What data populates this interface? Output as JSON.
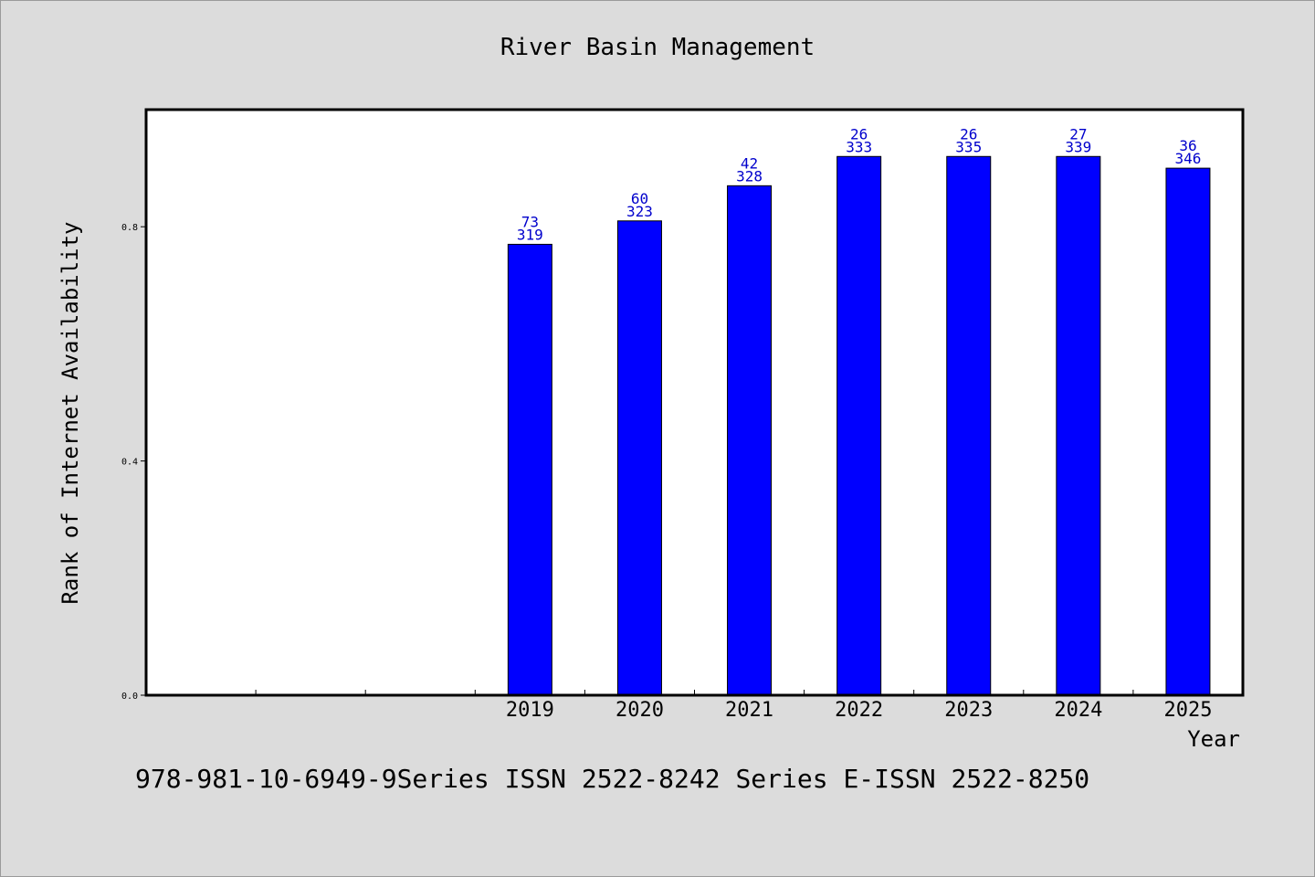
{
  "chart_data": {
    "type": "bar",
    "title": "River Basin Management",
    "xlabel": "Year",
    "ylabel": "Rank of Internet Availability",
    "categories": [
      "",
      "",
      "",
      "2019",
      "2020",
      "2021",
      "2022",
      "2023",
      "2024",
      "2025"
    ],
    "values": [
      null,
      null,
      null,
      0.77,
      0.81,
      0.87,
      0.92,
      0.92,
      0.92,
      0.9
    ],
    "bar_labels": [
      {
        "top": "",
        "bottom": ""
      },
      {
        "top": "",
        "bottom": ""
      },
      {
        "top": "",
        "bottom": ""
      },
      {
        "top": "73",
        "bottom": "319"
      },
      {
        "top": "60",
        "bottom": "323"
      },
      {
        "top": "42",
        "bottom": "328"
      },
      {
        "top": "26",
        "bottom": "333"
      },
      {
        "top": "26",
        "bottom": "335"
      },
      {
        "top": "27",
        "bottom": "339"
      },
      {
        "top": "36",
        "bottom": "346"
      }
    ],
    "yticks": [
      0.0,
      0.4,
      0.8
    ],
    "ytick_labels": [
      "0.0",
      "0.4",
      "0.8"
    ],
    "ylim": [
      0,
      1.0
    ],
    "grid": false,
    "colors": {
      "bar": "#0000ff",
      "bar_edge": "#000000",
      "label": "#0000cc",
      "plot_bg": "#ffffff",
      "page_bg": "#dcdcdc"
    }
  },
  "footer": {
    "text": "978-981-10-6949-9Series ISSN 2522-8242 Series E-ISSN 2522-8250"
  }
}
